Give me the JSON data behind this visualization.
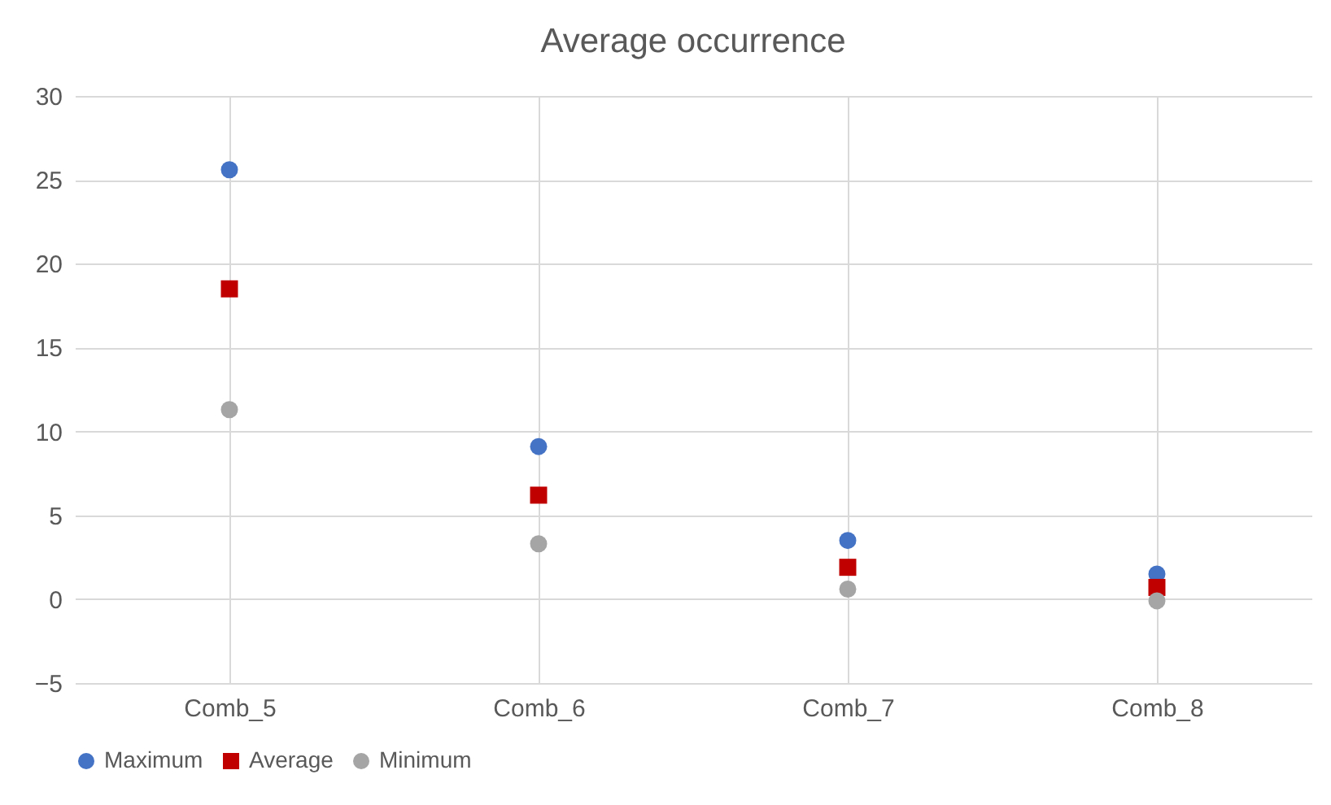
{
  "chart_data": {
    "type": "scatter",
    "title": "Average occurrence",
    "categories": [
      "Comb_5",
      "Comb_6",
      "Comb_7",
      "Comb_8"
    ],
    "series": [
      {
        "name": "Maximum",
        "color": "#4472c4",
        "marker": "circle",
        "values": [
          25.6,
          9.1,
          3.5,
          1.5
        ]
      },
      {
        "name": "Average",
        "color": "#c00000",
        "marker": "square",
        "values": [
          18.5,
          6.2,
          1.9,
          0.7
        ]
      },
      {
        "name": "Minimum",
        "color": "#a5a5a5",
        "marker": "circle",
        "values": [
          11.3,
          3.3,
          0.6,
          -0.1
        ]
      }
    ],
    "ylim": [
      -5,
      30
    ],
    "yticks": [
      -5,
      0,
      5,
      10,
      15,
      20,
      25,
      30
    ],
    "grid": true,
    "legend": "bottom"
  }
}
